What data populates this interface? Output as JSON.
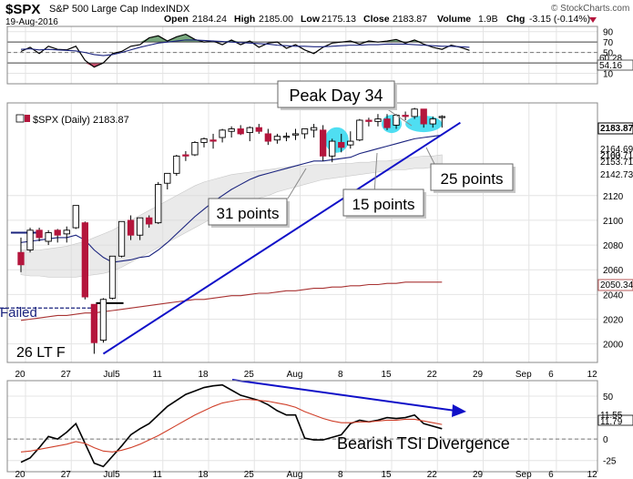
{
  "header": {
    "ticker": "$SPX",
    "name": "S&P 500 Large Cap Index",
    "exchange": "INDX",
    "date": "19-Aug-2016",
    "open_label": "Open",
    "open": "2184.24",
    "high_label": "High",
    "high": "2185.00",
    "low_label": "Low",
    "low": "2175.13",
    "close_label": "Close",
    "close": "2183.87",
    "volume_label": "Volume",
    "volume": "1.9B",
    "chg_label": "Chg",
    "chg": "-3.15 (-0.14%)",
    "watermark": "© StockCharts.com"
  },
  "colors": {
    "up": "#ffffff",
    "down": "#b4153c",
    "wick": "#000000",
    "ema_short": "#1a237e",
    "sma_long": "#a83232",
    "trendline": "#1010c8",
    "highlight": "#30d8f0",
    "cloud": "#d9d9d9",
    "rsi": "#000000",
    "rsi_signal": "#1a237e",
    "tsi": "#000000",
    "tsi_signal": "#d0402a",
    "divergence": "#1010c8",
    "failed": "#1a237e",
    "grid": "#e4e4e4"
  },
  "chart_data": [
    {
      "panel": "rsi",
      "type": "line",
      "ylim": [
        -10,
        100
      ],
      "yticks": [
        10,
        30,
        50,
        70,
        90
      ],
      "value_labels": [
        "60.28",
        "54.16"
      ],
      "overbought": 70,
      "oversold": 30,
      "series": [
        {
          "values": [
            52,
            60,
            48,
            62,
            56,
            55,
            62,
            35,
            22,
            30,
            48,
            52,
            62,
            65,
            78,
            82,
            72,
            80,
            85,
            75,
            70,
            72,
            65,
            74,
            65,
            72,
            60,
            68,
            70,
            58,
            65,
            55,
            48,
            60,
            68,
            70,
            72,
            66,
            72,
            70,
            72,
            75,
            68,
            74,
            66,
            60,
            56,
            64,
            60,
            54
          ]
        },
        {
          "values": [
            56,
            57,
            55,
            56,
            55,
            54,
            53,
            50,
            46,
            44,
            46,
            50,
            55,
            60,
            64,
            68,
            70,
            72,
            74,
            74,
            73,
            72,
            71,
            70,
            69,
            68,
            67,
            66,
            64,
            63,
            62,
            62,
            61,
            61,
            62,
            63,
            64,
            64,
            65,
            65,
            66,
            66,
            66,
            65,
            64,
            63,
            62,
            62,
            61,
            60
          ]
        }
      ]
    },
    {
      "panel": "price",
      "type": "candlestick",
      "ylim": [
        1985,
        2195
      ],
      "yticks": [
        2000,
        2020,
        2040,
        2060,
        2080,
        2100,
        2120
      ],
      "label": "$SPX (Daily) 2183.87",
      "value_labels": [
        "2183.87",
        "2164.69",
        "2163.71",
        "2153.71",
        "2142.73",
        "2100.",
        "2050.34"
      ],
      "x_ticks": [
        "20",
        "27",
        "Jul5",
        "11",
        "18",
        "25",
        "Aug",
        "8",
        "15",
        "22",
        "29",
        "Sep",
        "6",
        "12"
      ],
      "candles": [
        {
          "o": 2074,
          "h": 2086,
          "l": 2058,
          "c": 2064
        },
        {
          "o": 2076,
          "h": 2094,
          "l": 2074,
          "c": 2092
        },
        {
          "o": 2092,
          "h": 2094,
          "l": 2083,
          "c": 2086
        },
        {
          "o": 2083,
          "h": 2092,
          "l": 2080,
          "c": 2090
        },
        {
          "o": 2092,
          "h": 2093,
          "l": 2082,
          "c": 2088
        },
        {
          "o": 2089,
          "h": 2095,
          "l": 2082,
          "c": 2092
        },
        {
          "o": 2094,
          "h": 2112,
          "l": 2093,
          "c": 2112
        },
        {
          "o": 2098,
          "h": 2099,
          "l": 2036,
          "c": 2038
        },
        {
          "o": 2032,
          "h": 2032,
          "l": 1992,
          "c": 2001
        },
        {
          "o": 2003,
          "h": 2037,
          "l": 2001,
          "c": 2036
        },
        {
          "o": 2037,
          "h": 2071,
          "l": 2036,
          "c": 2071
        },
        {
          "o": 2071,
          "h": 2099,
          "l": 2070,
          "c": 2099
        },
        {
          "o": 2100,
          "h": 2104,
          "l": 2084,
          "c": 2088
        },
        {
          "o": 2088,
          "h": 2102,
          "l": 2084,
          "c": 2102
        },
        {
          "o": 2102,
          "h": 2104,
          "l": 2094,
          "c": 2097
        },
        {
          "o": 2098,
          "h": 2131,
          "l": 2097,
          "c": 2129
        },
        {
          "o": 2130,
          "h": 2138,
          "l": 2125,
          "c": 2138
        },
        {
          "o": 2138,
          "h": 2153,
          "l": 2136,
          "c": 2152
        },
        {
          "o": 2153,
          "h": 2156,
          "l": 2148,
          "c": 2152
        },
        {
          "o": 2153,
          "h": 2164,
          "l": 2152,
          "c": 2163
        },
        {
          "o": 2163,
          "h": 2167,
          "l": 2159,
          "c": 2166
        },
        {
          "o": 2165,
          "h": 2170,
          "l": 2158,
          "c": 2164
        },
        {
          "o": 2167,
          "h": 2174,
          "l": 2163,
          "c": 2173
        },
        {
          "o": 2172,
          "h": 2176,
          "l": 2167,
          "c": 2174
        },
        {
          "o": 2174,
          "h": 2177,
          "l": 2169,
          "c": 2170
        },
        {
          "o": 2171,
          "h": 2176,
          "l": 2164,
          "c": 2175
        },
        {
          "o": 2175,
          "h": 2178,
          "l": 2170,
          "c": 2172
        },
        {
          "o": 2170,
          "h": 2174,
          "l": 2161,
          "c": 2164
        },
        {
          "o": 2165,
          "h": 2170,
          "l": 2162,
          "c": 2168
        },
        {
          "o": 2168,
          "h": 2171,
          "l": 2164,
          "c": 2168
        },
        {
          "o": 2169,
          "h": 2174,
          "l": 2165,
          "c": 2170
        },
        {
          "o": 2170,
          "h": 2174,
          "l": 2166,
          "c": 2174
        },
        {
          "o": 2173,
          "h": 2178,
          "l": 2167,
          "c": 2175
        },
        {
          "o": 2173,
          "h": 2177,
          "l": 2148,
          "c": 2152
        },
        {
          "o": 2152,
          "h": 2166,
          "l": 2147,
          "c": 2164
        },
        {
          "o": 2163,
          "h": 2170,
          "l": 2155,
          "c": 2159
        },
        {
          "o": 2161,
          "h": 2172,
          "l": 2158,
          "c": 2164
        },
        {
          "o": 2165,
          "h": 2182,
          "l": 2164,
          "c": 2181
        },
        {
          "o": 2181,
          "h": 2183,
          "l": 2176,
          "c": 2180
        },
        {
          "o": 2180,
          "h": 2186,
          "l": 2176,
          "c": 2182
        },
        {
          "o": 2182,
          "h": 2186,
          "l": 2173,
          "c": 2175
        },
        {
          "o": 2177,
          "h": 2186,
          "l": 2174,
          "c": 2185
        },
        {
          "o": 2185,
          "h": 2188,
          "l": 2181,
          "c": 2184
        },
        {
          "o": 2184,
          "h": 2191,
          "l": 2182,
          "c": 2190
        },
        {
          "o": 2190,
          "h": 2190,
          "l": 2175,
          "c": 2178
        },
        {
          "o": 2178,
          "h": 2184,
          "l": 2175,
          "c": 2182
        },
        {
          "o": 2184,
          "h": 2185,
          "l": 2175,
          "c": 2184
        }
      ],
      "ema_short": [
        2082,
        2083,
        2084,
        2085,
        2086,
        2086,
        2088,
        2084,
        2076,
        2070,
        2066,
        2067,
        2068,
        2070,
        2071,
        2076,
        2082,
        2089,
        2096,
        2103,
        2109,
        2115,
        2120,
        2125,
        2129,
        2133,
        2136,
        2138,
        2140,
        2142,
        2144,
        2146,
        2148,
        2148,
        2149,
        2150,
        2151,
        2154,
        2156,
        2158,
        2160,
        2162,
        2164,
        2166,
        2167,
        2168,
        2169
      ],
      "sma_long": [
        2019,
        2020,
        2021,
        2022,
        2023,
        2023,
        2024,
        2025,
        2025,
        2026,
        2027,
        2028,
        2029,
        2030,
        2031,
        2032,
        2033,
        2034,
        2035,
        2036,
        2036,
        2037,
        2038,
        2039,
        2039,
        2040,
        2041,
        2041,
        2042,
        2043,
        2043,
        2044,
        2045,
        2045,
        2046,
        2046,
        2047,
        2047,
        2048,
        2048,
        2049,
        2049,
        2050,
        2050,
        2050,
        2050,
        2050
      ],
      "cloud_upper": [
        2076,
        2076,
        2076,
        2077,
        2078,
        2079,
        2081,
        2083,
        2086,
        2089,
        2092,
        2096,
        2100,
        2104,
        2108,
        2112,
        2116,
        2120,
        2124,
        2128,
        2131,
        2133,
        2135,
        2137,
        2138,
        2139,
        2140,
        2141,
        2142,
        2143,
        2144,
        2144,
        2145,
        2145,
        2145,
        2146,
        2146,
        2147,
        2147,
        2148,
        2148,
        2149,
        2150,
        2151,
        2152,
        2152,
        2153
      ],
      "cloud_lower": [
        2056,
        2055,
        2055,
        2054,
        2054,
        2054,
        2054,
        2055,
        2056,
        2057,
        2059,
        2062,
        2066,
        2070,
        2074,
        2078,
        2082,
        2086,
        2090,
        2094,
        2098,
        2102,
        2106,
        2109,
        2112,
        2115,
        2118,
        2120,
        2123,
        2125,
        2127,
        2129,
        2131,
        2133,
        2134,
        2135,
        2136,
        2137,
        2138,
        2139,
        2140,
        2141,
        2141,
        2142,
        2142,
        2143,
        2143
      ],
      "trendline": {
        "from_index": 9,
        "from_value": 1992,
        "to_index": 48,
        "to_value": 2179
      },
      "hline": {
        "value": 2090,
        "from_index": -0.8,
        "to_index": 2.5
      },
      "failed_line": {
        "value": 2029,
        "to_index": 8
      },
      "neckline": {
        "value": 2033,
        "from_index": 8.5,
        "to_index": 11.5
      },
      "highlights": [
        {
          "center_index": 34.5,
          "value": 2165,
          "rx": 1.3,
          "ry": 14
        },
        {
          "center_index": 40.5,
          "value": 2178,
          "rx": 1.1,
          "ry": 10
        },
        {
          "center_index": 44,
          "value": 2178,
          "rx": 2,
          "ry": 9
        }
      ],
      "annotations": [
        {
          "text": "Peak Day 34",
          "box": true
        },
        {
          "text": "31 points",
          "box": true
        },
        {
          "text": "15 points",
          "box": true
        },
        {
          "text": "25 points",
          "box": true
        },
        {
          "text": "Failed",
          "box": false
        },
        {
          "text": "26 LT F",
          "box": false
        }
      ]
    },
    {
      "panel": "tsi",
      "type": "line",
      "ylim": [
        -38,
        68
      ],
      "yticks": [
        -25,
        0,
        25,
        50
      ],
      "value_labels": [
        "11.55",
        "11.79"
      ],
      "annotation": "Bearish TSI Divergence",
      "series": [
        {
          "values": [
            -27,
            -22,
            -10,
            3,
            0,
            8,
            18,
            -5,
            -28,
            -32,
            -20,
            -8,
            5,
            12,
            18,
            28,
            38,
            45,
            52,
            56,
            60,
            62,
            63,
            57,
            51,
            48,
            45,
            40,
            33,
            28,
            28,
            1,
            -1,
            -1,
            2,
            5,
            18,
            22,
            20,
            22,
            25,
            24,
            25,
            28,
            18,
            15,
            12
          ]
        },
        {
          "values": [
            -15,
            -14,
            -12,
            -10,
            -8,
            -6,
            -3,
            -5,
            -10,
            -14,
            -15,
            -13,
            -10,
            -6,
            -1,
            4,
            10,
            16,
            22,
            28,
            33,
            38,
            42,
            44,
            46,
            46,
            45,
            44,
            42,
            40,
            37,
            32,
            28,
            24,
            21,
            19,
            19,
            20,
            20,
            21,
            22,
            22,
            23,
            23,
            21,
            19,
            17
          ]
        }
      ]
    }
  ]
}
